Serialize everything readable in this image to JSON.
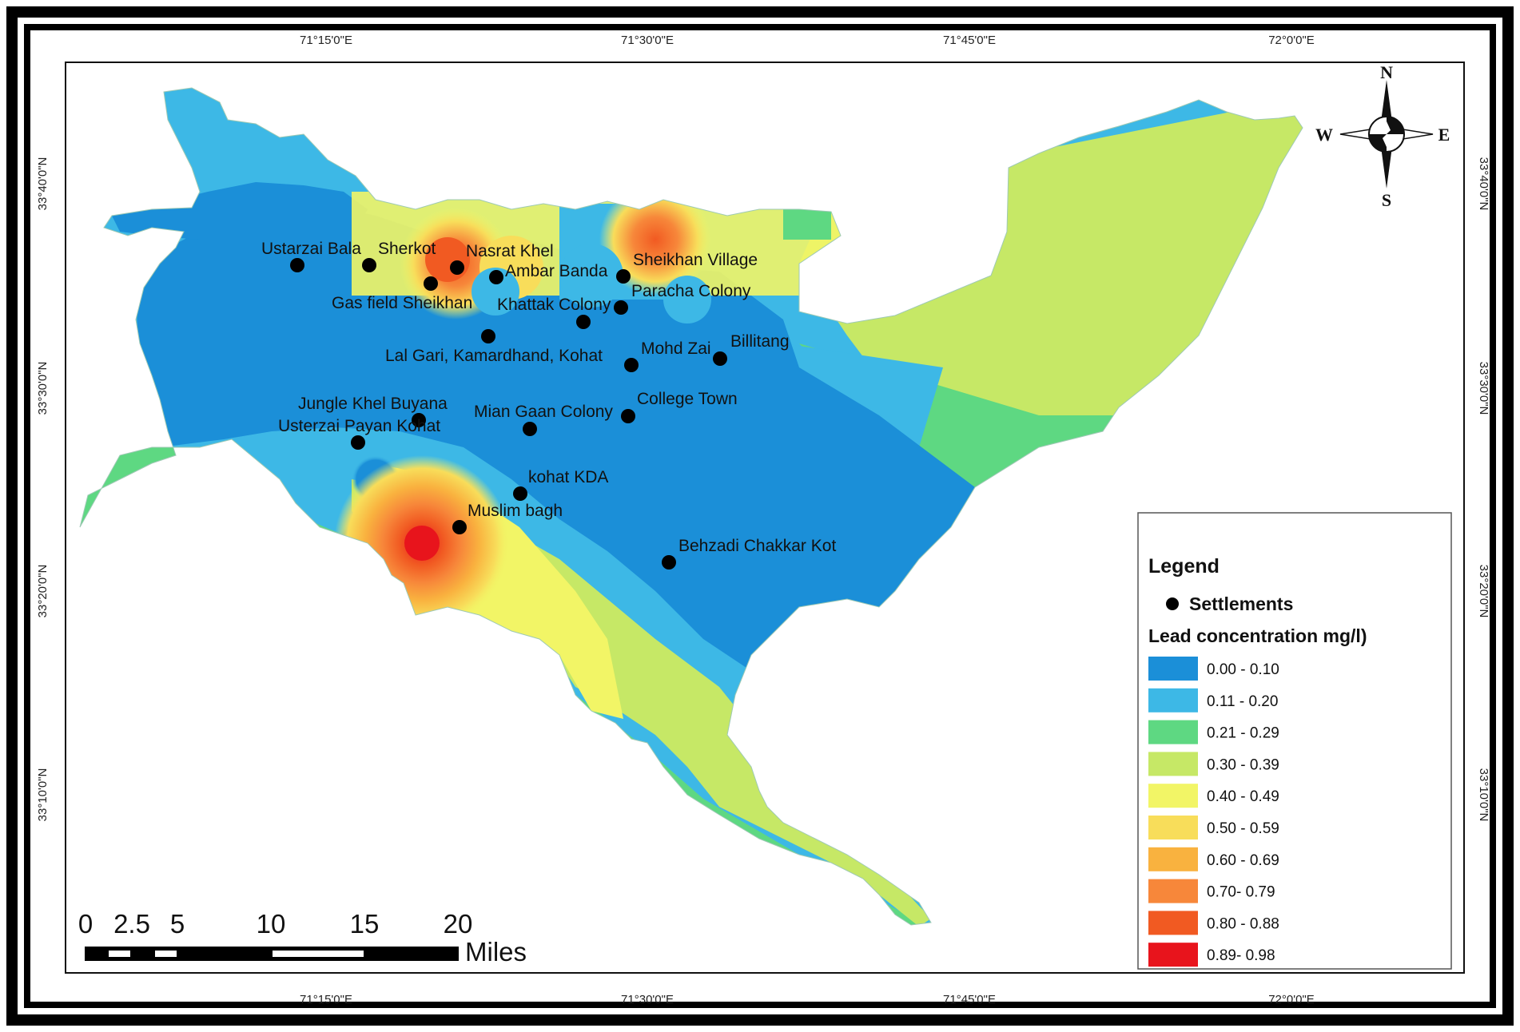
{
  "map": {
    "graticule": {
      "top_labels": [
        "71°15'0\"E",
        "71°30'0\"E",
        "71°45'0\"E",
        "72°0'0\"E"
      ],
      "bottom_labels": [
        "71°15'0\"E",
        "71°30'0\"E",
        "71°45'0\"E",
        "72°0'0\"E"
      ],
      "left_labels": [
        "33°40'0\"N",
        "33°30'0\"N",
        "33°20'0\"N",
        "33°10'0\"N"
      ],
      "right_labels": [
        "33°40'0\"N",
        "33°30'0\"N",
        "33°20'0\"N",
        "33°10'0\"N"
      ]
    },
    "settlements": [
      "Ustarzai Bala",
      "Sherkot",
      "Nasrat Khel",
      "Ambar Banda",
      "Sheikhan Village",
      "Paracha Colony",
      "Gas field Sheikhan",
      "Khattak Colony",
      "Lal Gari, Kamardhand, Kohat",
      "Mohd Zai",
      "Billitang",
      "Jungle Khel Buyana",
      "Mian Gaan Colony",
      "College Town",
      "Usterzai Payan Kohat",
      "kohat KDA",
      "Muslim bagh",
      "Behzadi Chakkar Kot"
    ],
    "settlement_labels": {
      "ustarzai_bala": "Ustarzai Bala",
      "sherkot": "Sherkot",
      "nasrat_khel": "Nasrat Khel",
      "ambar_banda": "Ambar Banda",
      "sheikhan_village": "Sheikhan Village",
      "paracha_colony": "Paracha Colony",
      "gas_field": "Gas field Sheikhan",
      "khattak_colony": "Khattak Colony",
      "lal_gari": "Lal Gari, Kamardhand, Kohat",
      "mohd_zai": "Mohd Zai",
      "billitang": "Billitang",
      "jungle_khel": "Jungle Khel Buyana",
      "mian_gaan": "Mian Gaan Colony",
      "college_town": "College Town",
      "usterzai_payan": "Usterzai Payan Kohat",
      "kohat_kda": "kohat KDA",
      "muslim_bagh": "Muslim bagh",
      "behzadi": "Behzadi Chakkar Kot"
    }
  },
  "legend": {
    "title": "Legend",
    "settlements_label": "Settlements",
    "concentration_title": "Lead concentration mg/l)",
    "classes": [
      {
        "range": "0.00 - 0.10",
        "color": "#1b8fd8"
      },
      {
        "range": "0.11 - 0.20",
        "color": "#3db8e6"
      },
      {
        "range": "0.21 - 0.29",
        "color": "#5ed882"
      },
      {
        "range": "0.30 - 0.39",
        "color": "#c6e866"
      },
      {
        "range": "0.40 - 0.49",
        "color": "#f2f566"
      },
      {
        "range": "0.50 - 0.59",
        "color": "#f8dd5a"
      },
      {
        "range": "0.60 - 0.69",
        "color": "#f9b23f"
      },
      {
        "range": "0.70- 0.79",
        "color": "#f7873a"
      },
      {
        "range": "0.80 - 0.88",
        "color": "#f15a22"
      },
      {
        "range": "0.89- 0.98",
        "color": "#e8141c"
      }
    ]
  },
  "scale_bar": {
    "ticks": [
      "0",
      "2.5",
      "5",
      "10",
      "15",
      "20"
    ],
    "unit": "Miles"
  },
  "compass": {
    "north": "N",
    "south": "S",
    "east": "E",
    "west": "W"
  }
}
